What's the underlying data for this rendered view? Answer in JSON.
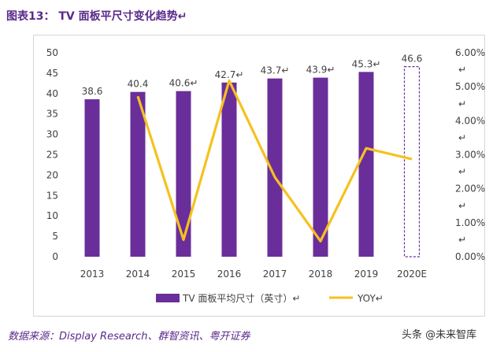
{
  "page": {
    "title": "图表13：  TV 面板平尺寸变化趋势↵",
    "source": "数据来源：Display Research、群智资讯、粤开证券",
    "watermark": "头条 @未来智库"
  },
  "colors": {
    "bar": "#6a2e9a",
    "line": "#f6c11f",
    "text": "#404040",
    "border": "#d6d6d6",
    "title": "#5a2a8a"
  },
  "chart_data": {
    "type": "bar",
    "categories": [
      "2013",
      "2014",
      "2015",
      "2016",
      "2017",
      "2018",
      "2019",
      "2020E"
    ],
    "series": [
      {
        "name": "TV 面板平均尺寸（英寸）",
        "type": "bar",
        "values": [
          38.6,
          40.4,
          40.6,
          42.7,
          43.7,
          43.9,
          45.3,
          46.6
        ],
        "labels": [
          "38.6",
          "40.4",
          "40.6↵",
          "42.7↵",
          "43.7↵",
          "43.9↵",
          "45.3↵",
          "46.6"
        ]
      },
      {
        "name": "YOY",
        "type": "line",
        "axis": "right",
        "values": [
          null,
          0.0472,
          0.005,
          0.0518,
          0.0234,
          0.0046,
          0.0319,
          0.0287
        ]
      }
    ],
    "yleft": {
      "min": 0,
      "max": 50,
      "ticks": [
        "0",
        "5",
        "10",
        "15",
        "20",
        "25",
        "30",
        "35",
        "40",
        "45",
        "50"
      ]
    },
    "yright": {
      "min": 0,
      "max": 0.06,
      "ticks": [
        "0.00%",
        "1.00%",
        "2.00%",
        "3.00%",
        "4.00%",
        "5.00%",
        "6.00%"
      ]
    },
    "legend": {
      "position": "bottom",
      "bar_label": "TV 面板平均尺寸（英寸）↵",
      "line_label": "YOY↵"
    },
    "forecast_category": "2020E",
    "grid": false
  }
}
